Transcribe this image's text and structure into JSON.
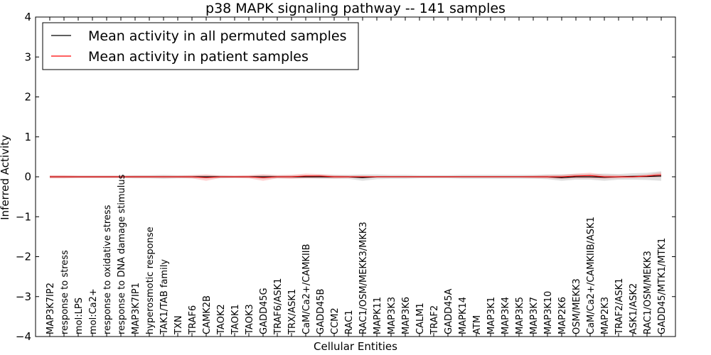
{
  "chart_data": {
    "type": "line",
    "title": "p38 MAPK signaling pathway -- 141 samples",
    "xlabel": "Cellular Entities",
    "ylabel": "Inferred Activity",
    "ylim": [
      -4,
      4
    ],
    "yticks": [
      -4,
      -3,
      -2,
      -1,
      0,
      1,
      2,
      3,
      4
    ],
    "ytick_labels": [
      "−4",
      "−3",
      "−2",
      "−1",
      "0",
      "1",
      "2",
      "3",
      "4"
    ],
    "legend_position": "top-left",
    "categories": [
      "MAP3K7IP2",
      "response to stress",
      "mol:LPS",
      "mol:Ca2+",
      "response to oxidative stress",
      "response to DNA damage stimulus",
      "MAP3K7IP1",
      "hyperosmotic response",
      "TAK1/TAB family",
      "TXN",
      "TRAF6",
      "CAMK2B",
      "TAOK2",
      "TAOK1",
      "TAOK3",
      "GADD45G",
      "TRAF6/ASK1",
      "TRX/ASK1",
      "CaM/Ca2+/CAMKIIB",
      "GADD45B",
      "CCM2",
      "RAC1",
      "RAC1/OSM/MEKK3/MKK3",
      "MAPK11",
      "MAP3K3",
      "MAP3K6",
      "CALM1",
      "TRAF2",
      "GADD45A",
      "MAPK14",
      "ATM",
      "MAP3K1",
      "MAP3K4",
      "MAP3K5",
      "MAP3K7",
      "MAP3K10",
      "MAP2K6",
      "OSM/MEKK3",
      "CaM/Ca2+/CAMKIIB/ASK1",
      "MAP2K3",
      "TRAF2/ASK1",
      "ASK1/ASK2",
      "RAC1/OSM/MEKK3",
      "GADD45/MTK1/MTK1"
    ],
    "series": [
      {
        "name": "Mean activity in all permuted samples",
        "color": "#000000",
        "values": [
          0,
          0,
          0,
          0,
          0,
          0,
          0,
          0,
          0,
          0,
          0,
          0,
          0,
          0,
          0,
          0,
          0,
          0,
          0,
          0,
          0,
          0,
          -0.02,
          0,
          0,
          0,
          0,
          0,
          0,
          0,
          0,
          0,
          0,
          0,
          0,
          0,
          -0.02,
          0,
          0,
          -0.01,
          0,
          0.01,
          0.01,
          0.02
        ],
        "band": [
          0.03,
          0.03,
          0.03,
          0.03,
          0.03,
          0.03,
          0.04,
          0.04,
          0.05,
          0.04,
          0.04,
          0.04,
          0.04,
          0.03,
          0.03,
          0.05,
          0.04,
          0.04,
          0.04,
          0.05,
          0.05,
          0.05,
          0.08,
          0.06,
          0.05,
          0.05,
          0.04,
          0.04,
          0.04,
          0.05,
          0.05,
          0.05,
          0.05,
          0.05,
          0.05,
          0.06,
          0.08,
          0.07,
          0.07,
          0.09,
          0.07,
          0.08,
          0.09,
          0.12
        ]
      },
      {
        "name": "Mean activity in patient samples",
        "color": "#ff0000",
        "values": [
          0,
          0,
          0,
          0,
          0,
          0,
          0,
          0,
          0,
          0,
          0,
          -0.02,
          0,
          0,
          0,
          -0.02,
          0,
          0,
          0.02,
          0.02,
          0,
          0,
          0,
          0,
          0,
          0,
          0,
          0,
          0,
          0,
          0,
          0,
          0,
          0,
          0,
          0,
          0,
          0.02,
          0.03,
          0,
          0,
          0,
          0.02,
          0.05
        ],
        "band": [
          0.04,
          0.04,
          0.03,
          0.03,
          0.03,
          0.03,
          0.03,
          0.03,
          0.03,
          0.03,
          0.04,
          0.08,
          0.03,
          0.03,
          0.04,
          0.08,
          0.04,
          0.05,
          0.06,
          0.05,
          0.04,
          0.03,
          0.03,
          0.02,
          0.02,
          0.02,
          0.02,
          0.02,
          0.02,
          0.02,
          0.02,
          0.02,
          0.02,
          0.02,
          0.03,
          0.04,
          0.05,
          0.06,
          0.07,
          0.05,
          0.04,
          0.03,
          0.04,
          0.06
        ]
      }
    ]
  }
}
